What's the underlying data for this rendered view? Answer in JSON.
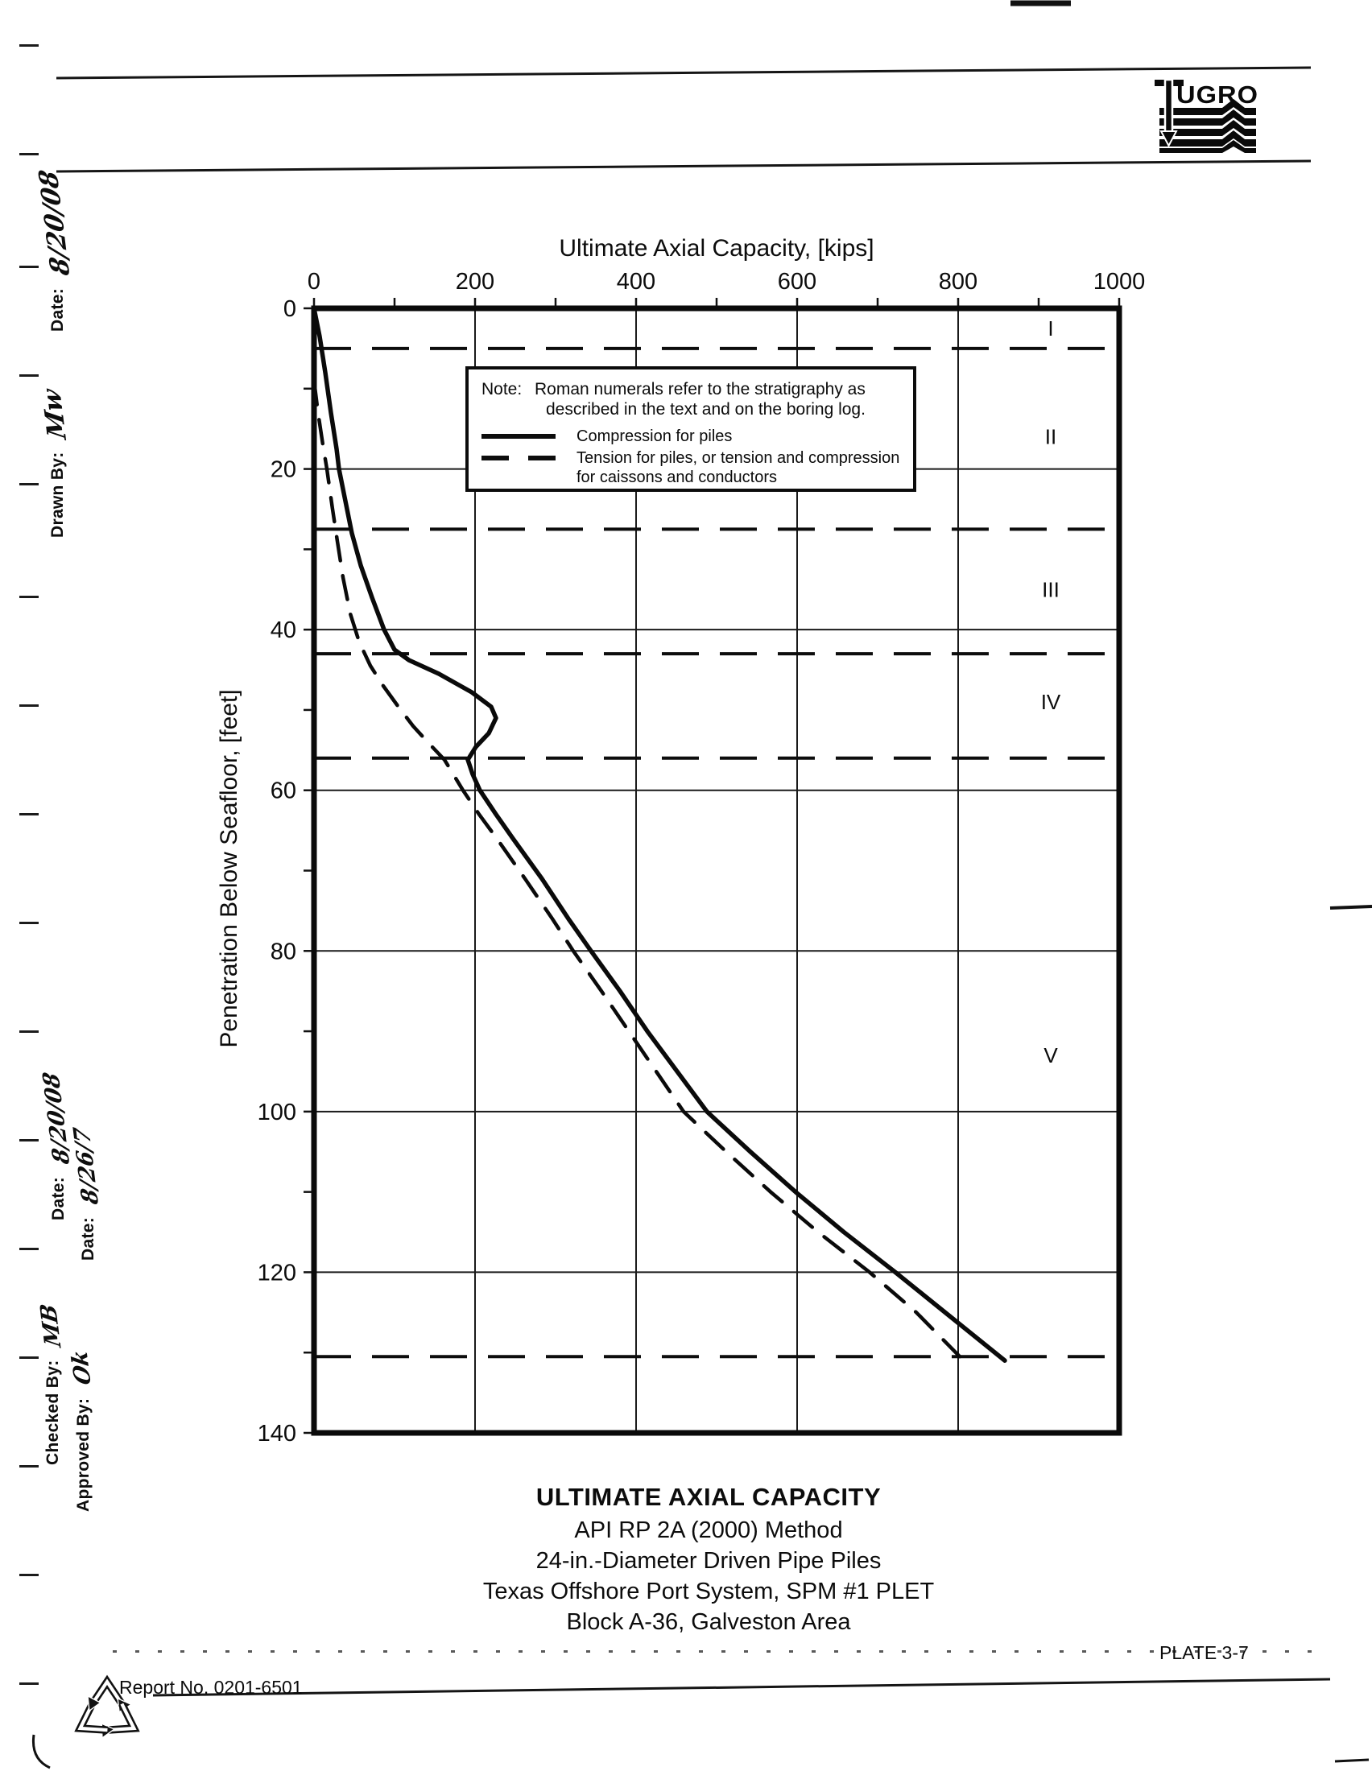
{
  "colors": {
    "ink": "#0d0d0d",
    "paper": "#ffffff"
  },
  "header": {
    "logo_text": "UGRO"
  },
  "sidebar": {
    "date_top_label": "Date:",
    "date_top_value": "8/20/08",
    "drawn_by_label": "Drawn By:",
    "drawn_by_value": "Mw",
    "date_mid1_label": "Date:",
    "date_mid1_value": "8/20/08",
    "date_mid2_label": "Date:",
    "date_mid2_value": "8/26/7",
    "checked_by_label": "Checked By:",
    "checked_by_value": "MB",
    "approved_by_label": "Approved By:",
    "approved_by_value": "Ok"
  },
  "note_box": {
    "note_label": "Note:",
    "note_line1": "Roman numerals refer to the stratigraphy as",
    "note_line2": "described in the text and on the boring log.",
    "legend": [
      {
        "label": "Compression for piles"
      },
      {
        "label_line1": "Tension for piles, or tension and compression",
        "label_line2": "for caissons and conductors"
      }
    ]
  },
  "title_block": {
    "line1": "ULTIMATE AXIAL CAPACITY",
    "line2": "API RP 2A (2000) Method",
    "line3": "24-in.-Diameter Driven Pipe Piles",
    "line4": "Texas Offshore Port System, SPM #1 PLET",
    "line5": "Block A-36, Galveston Area"
  },
  "footer": {
    "report_no": "Report No. 0201-6501",
    "plate": "PLATE 3-7"
  },
  "chart_data": {
    "type": "line",
    "title": "Ultimate Axial Capacity, [kips]",
    "xlabel": "Ultimate Axial Capacity, [kips]",
    "ylabel": "Penetration Below Seafloor, [feet]",
    "xlim": [
      0,
      1000
    ],
    "ylim": [
      0,
      140
    ],
    "x_ticks": [
      0,
      200,
      400,
      600,
      800,
      1000
    ],
    "y_ticks": [
      0,
      20,
      40,
      60,
      80,
      100,
      120,
      140
    ],
    "x_minor_step": 100,
    "y_minor_step": 10,
    "grid": true,
    "legend_position": "note-box upper middle",
    "strata_boundaries_ft": [
      5,
      27.5,
      43,
      56,
      130.5
    ],
    "strata_labels": [
      {
        "label": "I",
        "depth_ft": 2.5
      },
      {
        "label": "II",
        "depth_ft": 16
      },
      {
        "label": "III",
        "depth_ft": 35
      },
      {
        "label": "IV",
        "depth_ft": 49
      },
      {
        "label": "V",
        "depth_ft": 93
      }
    ],
    "series": [
      {
        "name": "Compression for piles",
        "style": "solid",
        "points_kips_ft": [
          [
            0,
            0
          ],
          [
            7,
            3.5
          ],
          [
            14,
            8
          ],
          [
            21,
            13
          ],
          [
            28,
            17.5
          ],
          [
            31,
            20
          ],
          [
            39,
            24
          ],
          [
            47,
            28
          ],
          [
            58,
            32
          ],
          [
            72,
            36
          ],
          [
            87,
            40
          ],
          [
            100,
            42.5
          ],
          [
            118,
            43.8
          ],
          [
            155,
            45.5
          ],
          [
            196,
            47.8
          ],
          [
            220,
            49.6
          ],
          [
            226,
            51
          ],
          [
            217,
            52.9
          ],
          [
            201,
            54.6
          ],
          [
            191,
            56.2
          ],
          [
            197,
            58
          ],
          [
            206,
            60
          ],
          [
            226,
            63
          ],
          [
            247,
            66
          ],
          [
            283,
            71
          ],
          [
            316,
            76
          ],
          [
            344,
            80
          ],
          [
            380,
            85
          ],
          [
            414,
            90
          ],
          [
            451,
            95
          ],
          [
            488,
            100
          ],
          [
            542,
            105
          ],
          [
            598,
            110
          ],
          [
            658,
            115
          ],
          [
            722,
            120
          ],
          [
            790,
            125.5
          ],
          [
            858,
            131
          ]
        ]
      },
      {
        "name": "Tension for piles, or tension and compression for caissons and conductors",
        "style": "dashed",
        "points_kips_ft": [
          [
            0,
            9
          ],
          [
            5,
            13
          ],
          [
            11,
            17
          ],
          [
            16,
            20
          ],
          [
            23,
            25
          ],
          [
            29,
            29
          ],
          [
            36,
            33.5
          ],
          [
            45,
            38
          ],
          [
            56,
            41.5
          ],
          [
            70,
            44.5
          ],
          [
            86,
            47
          ],
          [
            104,
            49.5
          ],
          [
            123,
            52
          ],
          [
            143,
            54.2
          ],
          [
            162,
            56.2
          ],
          [
            185,
            60
          ],
          [
            205,
            63
          ],
          [
            227,
            66
          ],
          [
            262,
            71
          ],
          [
            296,
            76
          ],
          [
            322,
            80
          ],
          [
            357,
            85
          ],
          [
            391,
            90
          ],
          [
            425,
            95
          ],
          [
            459,
            100
          ],
          [
            512,
            105
          ],
          [
            567,
            110
          ],
          [
            626,
            115
          ],
          [
            690,
            120
          ],
          [
            748,
            125
          ],
          [
            802,
            130.5
          ]
        ]
      }
    ]
  }
}
